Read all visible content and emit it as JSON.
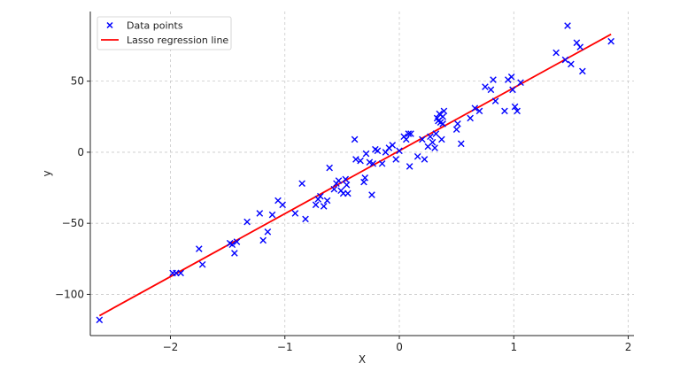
{
  "chart_data": {
    "type": "scatter",
    "title": "",
    "xlabel": "X",
    "ylabel": "y",
    "xlim": [
      -2.7,
      2.05
    ],
    "ylim": [
      -129,
      99
    ],
    "xticks": [
      -2,
      -1,
      0,
      1,
      2
    ],
    "xtick_labels": [
      "−2",
      "−1",
      "0",
      "1",
      "2"
    ],
    "yticks": [
      -100,
      -50,
      0,
      50
    ],
    "ytick_labels": [
      "−100",
      "−50",
      "0",
      "50"
    ],
    "grid": true,
    "legend_position": "top-left",
    "colors": {
      "points": "#0000ff",
      "line": "#ff0000"
    },
    "series": [
      {
        "name": "Data points",
        "type": "scatter",
        "marker": "x",
        "points": [
          [
            -2.62,
            -118
          ],
          [
            -1.98,
            -85
          ],
          [
            -1.95,
            -85
          ],
          [
            -1.91,
            -85
          ],
          [
            -1.75,
            -68
          ],
          [
            -1.72,
            -79
          ],
          [
            -1.48,
            -64
          ],
          [
            -1.46,
            -65
          ],
          [
            -1.44,
            -71
          ],
          [
            -1.42,
            -63
          ],
          [
            -1.33,
            -49
          ],
          [
            -1.22,
            -43
          ],
          [
            -1.19,
            -62
          ],
          [
            -1.15,
            -56
          ],
          [
            -1.11,
            -44
          ],
          [
            -1.06,
            -34
          ],
          [
            -1.02,
            -37
          ],
          [
            -0.91,
            -43
          ],
          [
            -0.85,
            -22
          ],
          [
            -0.82,
            -47
          ],
          [
            -0.73,
            -37
          ],
          [
            -0.71,
            -33
          ],
          [
            -0.69,
            -31
          ],
          [
            -0.66,
            -38
          ],
          [
            -0.63,
            -34
          ],
          [
            -0.61,
            -11
          ],
          [
            -0.57,
            -26
          ],
          [
            -0.55,
            -22
          ],
          [
            -0.53,
            -20
          ],
          [
            -0.51,
            -27
          ],
          [
            -0.49,
            -29
          ],
          [
            -0.47,
            -19
          ],
          [
            -0.46,
            -23
          ],
          [
            -0.45,
            -29
          ],
          [
            -0.39,
            9
          ],
          [
            -0.38,
            -5
          ],
          [
            -0.34,
            -6
          ],
          [
            -0.31,
            -21
          ],
          [
            -0.3,
            -18
          ],
          [
            -0.29,
            -1
          ],
          [
            -0.26,
            -7
          ],
          [
            -0.24,
            -30
          ],
          [
            -0.23,
            -8
          ],
          [
            -0.21,
            2
          ],
          [
            -0.19,
            1
          ],
          [
            -0.15,
            -8
          ],
          [
            -0.12,
            0
          ],
          [
            -0.09,
            3
          ],
          [
            -0.06,
            5
          ],
          [
            -0.03,
            -5
          ],
          [
            0.0,
            1
          ],
          [
            0.04,
            11
          ],
          [
            0.06,
            9
          ],
          [
            0.08,
            13
          ],
          [
            0.09,
            -10
          ],
          [
            0.1,
            13
          ],
          [
            0.16,
            -3
          ],
          [
            0.2,
            9
          ],
          [
            0.22,
            -5
          ],
          [
            0.25,
            4
          ],
          [
            0.27,
            11
          ],
          [
            0.29,
            7
          ],
          [
            0.31,
            3
          ],
          [
            0.32,
            13
          ],
          [
            0.33,
            24
          ],
          [
            0.34,
            22
          ],
          [
            0.35,
            27
          ],
          [
            0.36,
            21
          ],
          [
            0.37,
            9
          ],
          [
            0.38,
            25
          ],
          [
            0.38,
            20
          ],
          [
            0.39,
            29
          ],
          [
            0.5,
            16
          ],
          [
            0.51,
            20
          ],
          [
            0.54,
            6
          ],
          [
            0.62,
            24
          ],
          [
            0.66,
            31
          ],
          [
            0.7,
            29
          ],
          [
            0.75,
            46
          ],
          [
            0.8,
            44
          ],
          [
            0.82,
            51
          ],
          [
            0.84,
            36
          ],
          [
            0.92,
            29
          ],
          [
            0.95,
            51
          ],
          [
            0.98,
            53
          ],
          [
            0.99,
            44
          ],
          [
            1.01,
            32
          ],
          [
            1.03,
            29
          ],
          [
            1.06,
            49
          ],
          [
            1.37,
            70
          ],
          [
            1.45,
            65
          ],
          [
            1.47,
            89
          ],
          [
            1.5,
            62
          ],
          [
            1.55,
            77
          ],
          [
            1.58,
            74
          ],
          [
            1.6,
            57
          ],
          [
            1.85,
            78
          ]
        ]
      },
      {
        "name": "Lasso regression line",
        "type": "line",
        "points": [
          [
            -2.62,
            -115
          ],
          [
            1.85,
            83
          ]
        ]
      }
    ]
  }
}
